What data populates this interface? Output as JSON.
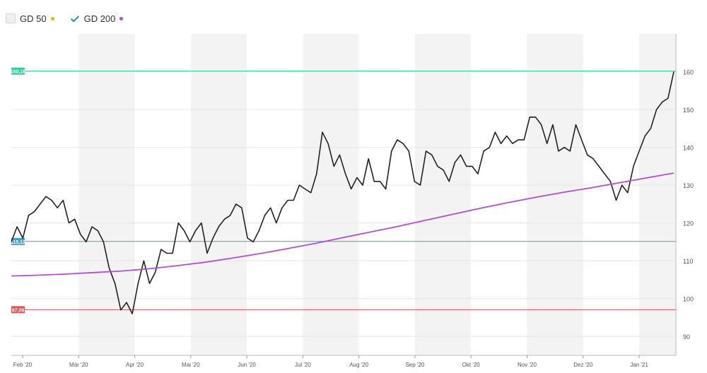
{
  "legend": [
    {
      "label": "GD 50",
      "checked": false,
      "color": "#f5b400"
    },
    {
      "label": "GD 200",
      "checked": true,
      "color": "#b04fd0"
    }
  ],
  "chart_data": {
    "type": "line",
    "x_ticks": [
      "Feb '20",
      "Mär '20",
      "Apr '20",
      "Mai '20",
      "Jun '20",
      "Jul '20",
      "Aug '20",
      "Sep '20",
      "Okt '20",
      "Nov '20",
      "Dez '20",
      "Jan '21"
    ],
    "y_ticks": [
      90,
      100,
      110,
      120,
      130,
      140,
      150,
      160
    ],
    "ylim": [
      85,
      170
    ],
    "grid": true,
    "reference_lines": [
      {
        "label": "160,16",
        "value": 160.16,
        "color": "#2ecc9a"
      },
      {
        "label": "115,12",
        "value": 115.12,
        "color": "#3aa0e0"
      },
      {
        "label": "97,08",
        "value": 97.08,
        "color": "#e05555"
      }
    ],
    "series": [
      {
        "name": "",
        "color": "#222222",
        "values": [
          115,
          119,
          116,
          122,
          123,
          125,
          127,
          126,
          124,
          126,
          120,
          121,
          117,
          115,
          119,
          118,
          115,
          108,
          104,
          97,
          99,
          96,
          104,
          110,
          104,
          107,
          113,
          112,
          112,
          120,
          118,
          115,
          118,
          120,
          112,
          116,
          119,
          121,
          122,
          125,
          124,
          116,
          115,
          118,
          122,
          124,
          120,
          124,
          126,
          126,
          130,
          129,
          128,
          133,
          144,
          141,
          135,
          138,
          133,
          129,
          132,
          130,
          137,
          131,
          131,
          129,
          139,
          142,
          141,
          139,
          131,
          130,
          139,
          138,
          135,
          134,
          131,
          136,
          138,
          135,
          135,
          133,
          139,
          140,
          144,
          141,
          143,
          141,
          142,
          142,
          148,
          148,
          146,
          141,
          146,
          139,
          140,
          139,
          146,
          142,
          138,
          137,
          135,
          133,
          131,
          126,
          130,
          128,
          135,
          139,
          143,
          145,
          150,
          152,
          153,
          160
        ]
      },
      {
        "name": "GD 200",
        "color": "#b04fd0",
        "values": [
          106,
          106.2,
          106.5,
          106.9,
          107.3,
          107.9,
          108.7,
          109.6,
          110.7,
          111.9,
          113.2,
          114.6,
          116.1,
          117.6,
          119.1,
          120.7,
          122.3,
          123.9,
          125.4,
          126.8,
          128.1,
          129.3,
          130.6,
          131.9,
          133.2
        ]
      }
    ]
  }
}
